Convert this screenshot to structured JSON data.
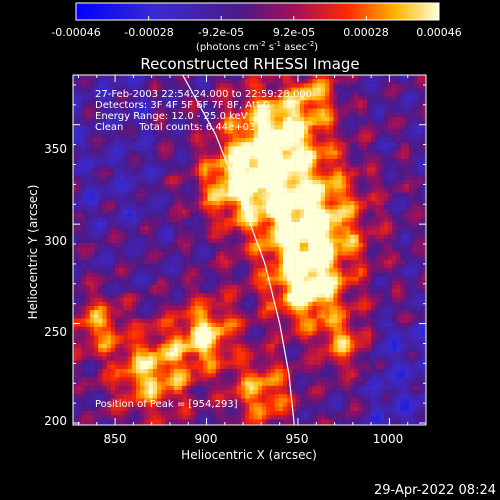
{
  "chart_data": {
    "type": "heatmap",
    "title": "Reconstructed RHESSI Image",
    "xlabel": "Heliocentric X (arcsec)",
    "ylabel": "Heliocentric Y (arcsec)",
    "xlim": [
      827,
      1020
    ],
    "ylim": [
      199,
      375
    ],
    "x_ticks": [
      850,
      900,
      950,
      1000
    ],
    "y_ticks": [
      200,
      250,
      300,
      350
    ],
    "colorbar": {
      "label_line1": "(photons cm",
      "label_line2": " s",
      "label_line3": " asec",
      "label_suffix": ")",
      "exp1": "-2",
      "exp2": "-1",
      "exp3": "-2",
      "range": [
        -0.00046,
        0.00046
      ],
      "ticks": [
        "-0.00046",
        "-0.00028",
        "-9.2e-05",
        "9.2e-05",
        "0.00028",
        "0.00046"
      ]
    },
    "annotations": [
      "27-Feb-2003 22:54:24.000 to 22:59:28.000",
      "Detectors: 3F 4F 5F 6F 7F 8F, Att 0",
      "Energy Range: 12.0 - 25.0 keV",
      "Clean     Total counts: 6.44e+03",
      "Position of Peak = [954,293]"
    ],
    "peak": [
      954,
      293
    ],
    "limb_curve": [
      [
        887,
        375
      ],
      [
        905,
        345
      ],
      [
        920,
        310
      ],
      [
        932,
        280
      ],
      [
        940,
        250
      ],
      [
        945,
        225
      ],
      [
        948,
        199
      ]
    ],
    "bright_regions": [
      {
        "x": 955,
        "y": 300,
        "r": 22,
        "v": 1.0
      },
      {
        "x": 938,
        "y": 345,
        "r": 18,
        "v": 0.95
      },
      {
        "x": 915,
        "y": 320,
        "r": 14,
        "v": 0.7
      },
      {
        "x": 955,
        "y": 265,
        "r": 14,
        "v": 0.7
      },
      {
        "x": 900,
        "y": 245,
        "r": 12,
        "v": 0.8
      },
      {
        "x": 870,
        "y": 225,
        "r": 16,
        "v": 0.75
      },
      {
        "x": 930,
        "y": 215,
        "r": 12,
        "v": 0.7
      },
      {
        "x": 975,
        "y": 240,
        "r": 10,
        "v": 0.55
      },
      {
        "x": 840,
        "y": 250,
        "r": 10,
        "v": 0.6
      },
      {
        "x": 960,
        "y": 365,
        "r": 8,
        "v": 0.5
      }
    ],
    "colors": {
      "negative_end": "#0000ff",
      "mid": "#4b1a8a",
      "positive_mid": "#ff5a00",
      "positive_end": "#ffffd8",
      "limb_line": "#ffffff"
    }
  },
  "footer": {
    "timestamp": "29-Apr-2022 08:24"
  }
}
